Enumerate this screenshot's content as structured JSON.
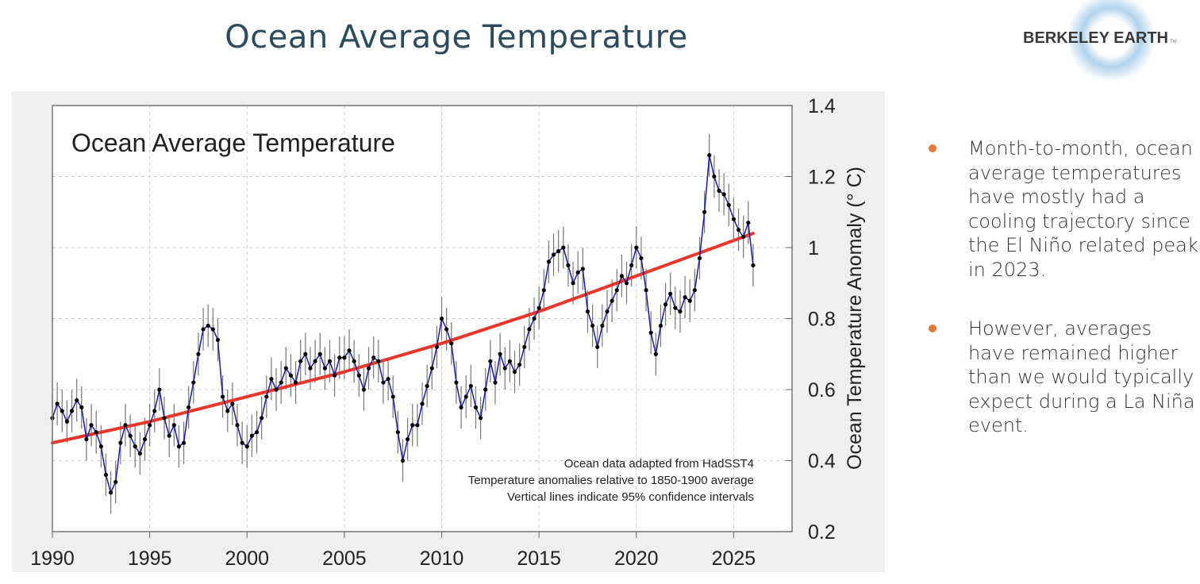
{
  "slide": {
    "title": "Ocean Average Temperature",
    "logo_text": "BERKELEY EARTH",
    "logo_tm": "TM",
    "bullets": [
      "Month-to-month, ocean average temperatures have mostly had a cooling trajectory since the El Niño related peak in 2023.",
      "However, averages have remained higher than we would typically expect during a La Niña event."
    ],
    "bullet_color": "#e07a38"
  },
  "chart_data": {
    "type": "line",
    "title": "Ocean Average Temperature",
    "ylabel": "Ocean Temperature Anomaly (° C)",
    "xlabel": "",
    "xlim": [
      1990,
      2028
    ],
    "ylim": [
      0.2,
      1.4
    ],
    "xticks": [
      1990,
      1995,
      2000,
      2005,
      2010,
      2015,
      2020,
      2025
    ],
    "yticks": [
      0.2,
      0.4,
      0.6,
      0.8,
      1,
      1.2,
      1.4
    ],
    "grid": true,
    "y_axis_side": "right",
    "annotations": [
      "Ocean data adapted from HadSST4",
      "Temperature anomalies relative to 1850-1900 average",
      "Vertical lines indicate 95% confidence intervals"
    ],
    "series": [
      {
        "color": "#1a1aa8",
        "marker_color": "#000000",
        "ci95_halfwidth": 0.06,
        "x": [
          1990,
          1990.25,
          1990.5,
          1990.75,
          1991,
          1991.25,
          1991.5,
          1991.75,
          1992,
          1992.25,
          1992.5,
          1992.75,
          1993,
          1993.25,
          1993.5,
          1993.75,
          1994,
          1994.25,
          1994.5,
          1994.75,
          1995,
          1995.25,
          1995.5,
          1995.75,
          1996,
          1996.25,
          1996.5,
          1996.75,
          1997,
          1997.25,
          1997.5,
          1997.75,
          1998,
          1998.25,
          1998.5,
          1998.75,
          1999,
          1999.25,
          1999.5,
          1999.75,
          2000,
          2000.25,
          2000.5,
          2000.75,
          2001,
          2001.25,
          2001.5,
          2001.75,
          2002,
          2002.25,
          2002.5,
          2002.75,
          2003,
          2003.25,
          2003.5,
          2003.75,
          2004,
          2004.25,
          2004.5,
          2004.75,
          2005,
          2005.25,
          2005.5,
          2005.75,
          2006,
          2006.25,
          2006.5,
          2006.75,
          2007,
          2007.25,
          2007.5,
          2007.75,
          2008,
          2008.25,
          2008.5,
          2008.75,
          2009,
          2009.25,
          2009.5,
          2009.75,
          2010,
          2010.25,
          2010.5,
          2010.75,
          2011,
          2011.25,
          2011.5,
          2011.75,
          2012,
          2012.25,
          2012.5,
          2012.75,
          2013,
          2013.25,
          2013.5,
          2013.75,
          2014,
          2014.25,
          2014.5,
          2014.75,
          2015,
          2015.25,
          2015.5,
          2015.75,
          2016,
          2016.25,
          2016.5,
          2016.75,
          2017,
          2017.25,
          2017.5,
          2017.75,
          2018,
          2018.25,
          2018.5,
          2018.75,
          2019,
          2019.25,
          2019.5,
          2019.75,
          2020,
          2020.25,
          2020.5,
          2020.75,
          2021,
          2021.25,
          2021.5,
          2021.75,
          2022,
          2022.25,
          2022.5,
          2022.75,
          2023,
          2023.25,
          2023.5,
          2023.75,
          2024,
          2024.25,
          2024.5,
          2024.75,
          2025,
          2025.25,
          2025.5,
          2025.75,
          2026
        ],
        "y": [
          0.52,
          0.56,
          0.54,
          0.51,
          0.54,
          0.57,
          0.55,
          0.46,
          0.5,
          0.48,
          0.44,
          0.36,
          0.31,
          0.34,
          0.45,
          0.5,
          0.47,
          0.44,
          0.42,
          0.46,
          0.5,
          0.54,
          0.6,
          0.52,
          0.47,
          0.5,
          0.44,
          0.45,
          0.55,
          0.62,
          0.7,
          0.77,
          0.78,
          0.77,
          0.74,
          0.58,
          0.54,
          0.56,
          0.5,
          0.45,
          0.44,
          0.47,
          0.48,
          0.52,
          0.58,
          0.63,
          0.6,
          0.62,
          0.66,
          0.64,
          0.62,
          0.68,
          0.7,
          0.66,
          0.68,
          0.7,
          0.66,
          0.68,
          0.64,
          0.69,
          0.69,
          0.71,
          0.68,
          0.64,
          0.6,
          0.66,
          0.69,
          0.68,
          0.62,
          0.63,
          0.58,
          0.48,
          0.4,
          0.46,
          0.5,
          0.5,
          0.56,
          0.61,
          0.66,
          0.72,
          0.8,
          0.77,
          0.73,
          0.62,
          0.55,
          0.58,
          0.61,
          0.55,
          0.52,
          0.6,
          0.68,
          0.62,
          0.7,
          0.66,
          0.68,
          0.65,
          0.67,
          0.72,
          0.77,
          0.8,
          0.83,
          0.88,
          0.96,
          0.98,
          0.99,
          1.0,
          0.95,
          0.9,
          0.93,
          0.94,
          0.82,
          0.78,
          0.72,
          0.78,
          0.82,
          0.85,
          0.88,
          0.92,
          0.9,
          0.95,
          1.0,
          0.97,
          0.88,
          0.76,
          0.7,
          0.78,
          0.84,
          0.87,
          0.83,
          0.82,
          0.86,
          0.85,
          0.88,
          0.97,
          1.1,
          1.26,
          1.2,
          1.16,
          1.15,
          1.12,
          1.08,
          1.05,
          1.03,
          1.07,
          0.95
        ]
      }
    ],
    "trend": {
      "color": "#e8372a",
      "x": [
        1990,
        1995,
        2000,
        2005,
        2010,
        2015,
        2020,
        2026
      ],
      "y": [
        0.45,
        0.51,
        0.58,
        0.65,
        0.73,
        0.82,
        0.92,
        1.04
      ]
    }
  }
}
